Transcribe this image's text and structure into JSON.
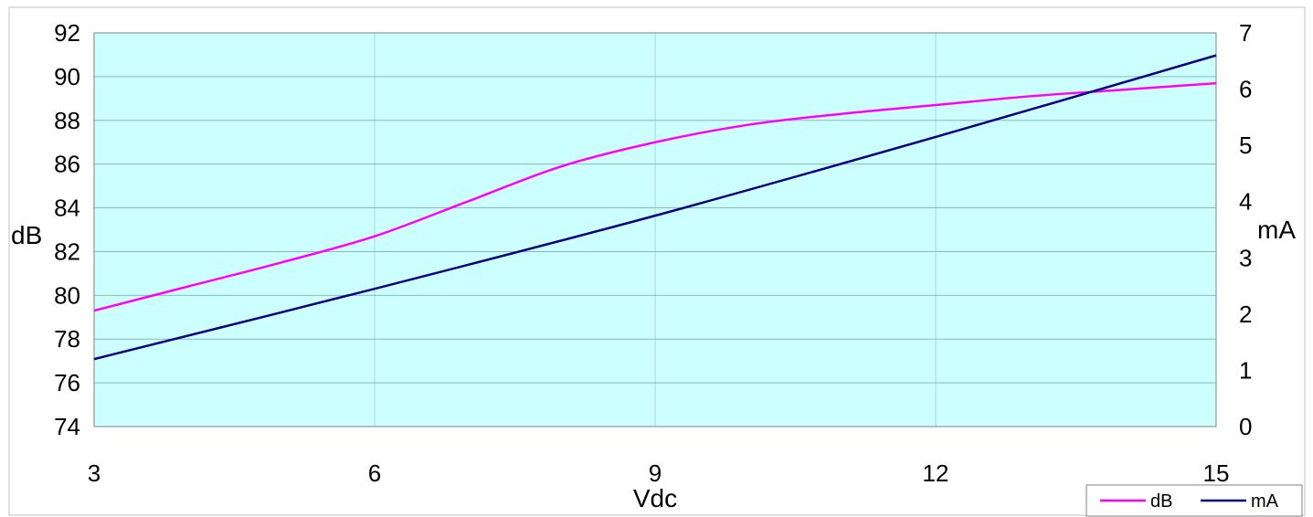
{
  "chart_data": {
    "type": "line",
    "xlabel": "Vdc",
    "ylabel_left": "dB",
    "ylabel_right": "mA",
    "xlim": [
      3,
      15
    ],
    "ylim_left": [
      74,
      92
    ],
    "ylim_right": [
      0,
      7
    ],
    "x_ticks": [
      "3",
      "6",
      "9",
      "12",
      "15"
    ],
    "y_left_ticks": [
      "74",
      "76",
      "78",
      "80",
      "82",
      "84",
      "86",
      "88",
      "90",
      "92"
    ],
    "y_right_ticks": [
      "0",
      "1",
      "2",
      "3",
      "4",
      "5",
      "6",
      "7"
    ],
    "grid": true,
    "legend_position": "bottom-right",
    "plot_background": "#ccffff",
    "series": [
      {
        "name": "dB",
        "axis": "left",
        "color": "#ff00ff",
        "x": [
          3,
          4,
          5,
          6,
          7,
          8,
          9,
          10,
          11,
          12,
          13,
          14,
          15
        ],
        "y": [
          79.3,
          80.4,
          81.5,
          82.7,
          84.3,
          85.9,
          87.0,
          87.8,
          88.3,
          88.7,
          89.1,
          89.4,
          89.7
        ]
      },
      {
        "name": "mA",
        "axis": "right",
        "color": "#000080",
        "x": [
          3,
          6,
          9,
          12,
          15
        ],
        "y": [
          1.2,
          2.45,
          3.75,
          5.15,
          6.6
        ]
      }
    ]
  }
}
